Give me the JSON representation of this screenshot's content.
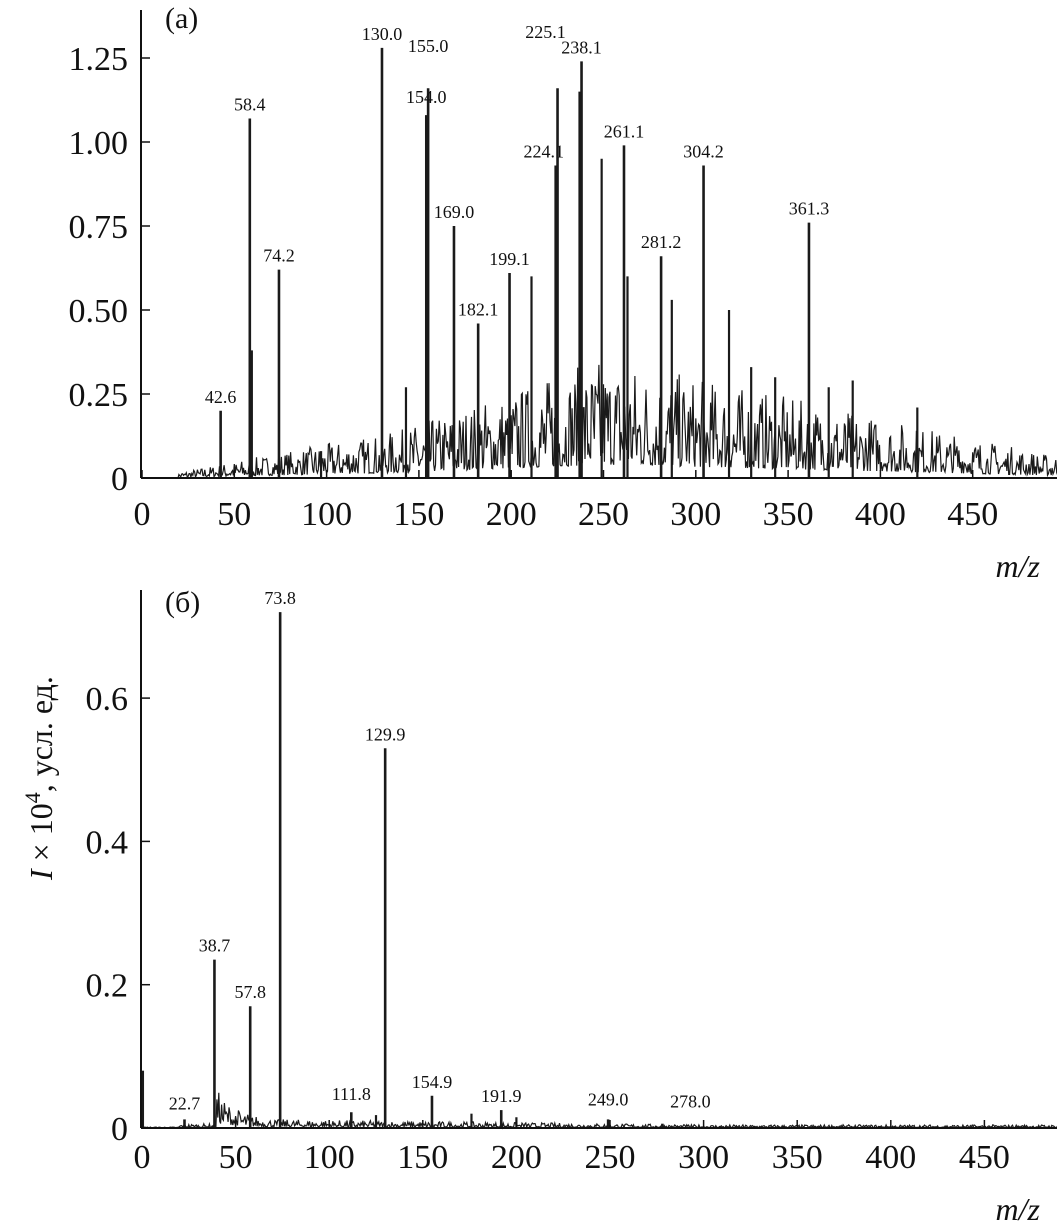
{
  "y_axis_label": {
    "symbol": "I",
    "times": " × 10",
    "exp": "4",
    "unit": ", усл. ед."
  },
  "chart_data": [
    {
      "type": "line",
      "panel_label": "(a)",
      "xlabel": "m/z",
      "xlim": [
        0,
        496
      ],
      "ylim": [
        0,
        1.39
      ],
      "x_ticks": [
        "0",
        "50",
        "100",
        "150",
        "200",
        "250",
        "300",
        "350",
        "400",
        "450"
      ],
      "y_ticks": [
        "0",
        "0.25",
        "0.50",
        "0.75",
        "1.00",
        "1.25"
      ],
      "peaks": [
        {
          "x": 42.6,
          "y": 0.2,
          "label": "42.6"
        },
        {
          "x": 58.4,
          "y": 1.07,
          "label": "58.4"
        },
        {
          "x": 74.2,
          "y": 0.62,
          "label": "74.2"
        },
        {
          "x": 130.0,
          "y": 1.28,
          "label": "130.0"
        },
        {
          "x": 155.0,
          "y": 1.16,
          "label": "155.0"
        },
        {
          "x": 154.0,
          "y": 1.08,
          "label": "154.0"
        },
        {
          "x": 169.0,
          "y": 0.75,
          "label": "169.0"
        },
        {
          "x": 182.1,
          "y": 0.46,
          "label": "182.1"
        },
        {
          "x": 199.1,
          "y": 0.61,
          "label": "199.1"
        },
        {
          "x": 224.1,
          "y": 0.93,
          "label": "224.1"
        },
        {
          "x": 225.1,
          "y": 1.16,
          "label": "225.1"
        },
        {
          "x": 238.1,
          "y": 1.24,
          "label": "238.1"
        },
        {
          "x": 261.1,
          "y": 0.99,
          "label": "261.1"
        },
        {
          "x": 281.2,
          "y": 0.66,
          "label": "281.2"
        },
        {
          "x": 304.2,
          "y": 0.93,
          "label": "304.2"
        },
        {
          "x": 361.3,
          "y": 0.76,
          "label": "361.3"
        }
      ],
      "other_peaks": [
        {
          "x": 59.5,
          "y": 0.38
        },
        {
          "x": 97,
          "y": 0.08
        },
        {
          "x": 143,
          "y": 0.27
        },
        {
          "x": 211,
          "y": 0.6
        },
        {
          "x": 237,
          "y": 1.15
        },
        {
          "x": 249,
          "y": 0.95
        },
        {
          "x": 263,
          "y": 0.6
        },
        {
          "x": 287,
          "y": 0.53
        },
        {
          "x": 318,
          "y": 0.5
        },
        {
          "x": 330,
          "y": 0.33
        },
        {
          "x": 343,
          "y": 0.3
        },
        {
          "x": 372,
          "y": 0.27
        },
        {
          "x": 385,
          "y": 0.29
        },
        {
          "x": 420,
          "y": 0.21
        }
      ]
    },
    {
      "type": "line",
      "panel_label": "(б)",
      "xlabel": "m/z",
      "xlim": [
        0,
        490
      ],
      "ylim": [
        0,
        0.75
      ],
      "x_ticks": [
        "0",
        "50",
        "100",
        "150",
        "200",
        "250",
        "300",
        "350",
        "400",
        "450"
      ],
      "y_ticks": [
        "0",
        "0.2",
        "0.4",
        "0.6"
      ],
      "peaks": [
        {
          "x": 22.7,
          "y": 0.012,
          "label": "22.7"
        },
        {
          "x": 38.7,
          "y": 0.235,
          "label": "38.7"
        },
        {
          "x": 57.8,
          "y": 0.17,
          "label": "57.8"
        },
        {
          "x": 73.8,
          "y": 0.72,
          "label": "73.8"
        },
        {
          "x": 111.8,
          "y": 0.022,
          "label": "111.8"
        },
        {
          "x": 129.9,
          "y": 0.53,
          "label": "129.9"
        },
        {
          "x": 154.9,
          "y": 0.045,
          "label": "154.9"
        },
        {
          "x": 191.9,
          "y": 0.025,
          "label": "191.9"
        },
        {
          "x": 249.0,
          "y": 0.012,
          "label": "249.0"
        },
        {
          "x": 278.0,
          "y": 0.006,
          "label": "278.0"
        }
      ],
      "other_peaks": [
        {
          "x": 0.5,
          "y": 0.08
        },
        {
          "x": 125,
          "y": 0.018
        },
        {
          "x": 176,
          "y": 0.02
        },
        {
          "x": 200,
          "y": 0.015
        }
      ]
    }
  ]
}
